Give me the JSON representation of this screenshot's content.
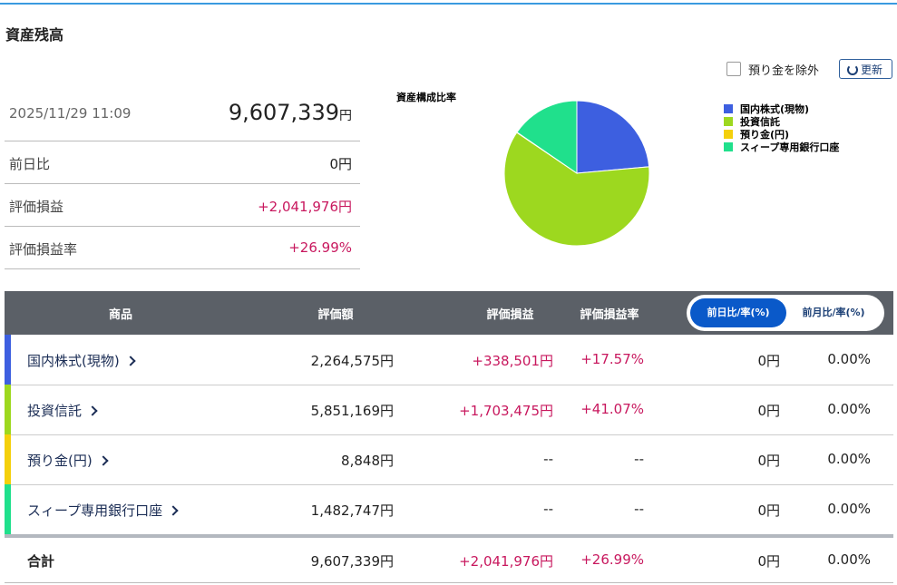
{
  "header": {
    "title": "資産残高"
  },
  "controls": {
    "exclude_deposit": "預り金を除外",
    "refresh": "更新"
  },
  "summary": {
    "datetime": "2025/11/29 11:09",
    "total": "9,607,339",
    "unit": "円",
    "rows": [
      {
        "label": "前日比",
        "value": "0円"
      },
      {
        "label": "評価損益",
        "value": "+2,041,976円"
      },
      {
        "label": "評価損益率",
        "value": "+26.99%"
      }
    ]
  },
  "chart_data": {
    "type": "pie",
    "title": "資産構成比率",
    "categories": [
      "国内株式(現物)",
      "投資信託",
      "預り金(円)",
      "スィープ専用銀行口座"
    ],
    "values": [
      2264575,
      5851169,
      8848,
      1482747
    ],
    "colors": [
      "#3d5fe0",
      "#9dd81f",
      "#f4d00c",
      "#20e08c"
    ]
  },
  "table": {
    "headers": [
      "商品",
      "評価額",
      "評価損益",
      "評価損益率"
    ],
    "toggle": [
      "前日比/率(%)",
      "前月比/率(%)"
    ],
    "rows": [
      [
        "国内株式(現物)",
        "2,264,575円",
        "+338,501円",
        "+17.57%",
        "0円",
        "0.00%"
      ],
      [
        "投資信託",
        "5,851,169円",
        "+1,703,475円",
        "+41.07%",
        "0円",
        "0.00%"
      ],
      [
        "預り金(円)",
        "8,848円",
        "--",
        "--",
        "0円",
        "0.00%"
      ],
      [
        "スィープ専用銀行口座",
        "1,482,747円",
        "--",
        "--",
        "0円",
        "0.00%"
      ]
    ],
    "total": [
      "合計",
      "9,607,339円",
      "+2,041,976円",
      "+26.99%",
      "0円",
      "0.00%"
    ]
  }
}
